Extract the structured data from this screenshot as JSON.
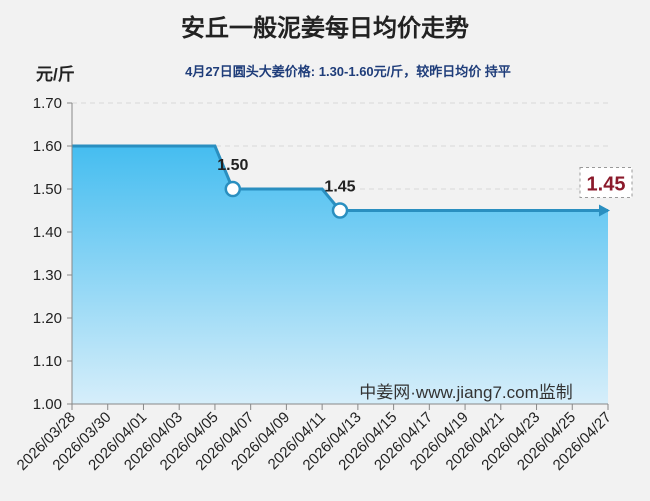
{
  "chart_data": {
    "type": "area",
    "title": "安丘一般泥姜每日均价走势",
    "subtitle": "4月27日圆头大姜价格: 1.30-1.60元/斤，较昨日均价 持平",
    "ylabel": "元/斤",
    "annotation": "中姜网·www.jiang7.com监制",
    "x": [
      "2026/03/28",
      "2026/04/05",
      "2026/04/06",
      "2026/04/11",
      "2026/04/12",
      "2026/04/27"
    ],
    "values": [
      1.6,
      1.6,
      1.5,
      1.5,
      1.45,
      1.45
    ],
    "value_labels": [
      null,
      null,
      "1.50",
      null,
      "1.45",
      "1.45"
    ],
    "color": "#2a8fc0",
    "xlim": [
      "2026/03/28",
      "2026/04/27"
    ],
    "xticks": [
      "2026/03/28",
      "2026/03/30",
      "2026/04/01",
      "2026/04/03",
      "2026/04/05",
      "2026/04/07",
      "2026/04/09",
      "2026/04/11",
      "2026/04/13",
      "2026/04/15",
      "2026/04/17",
      "2026/04/19",
      "2026/04/21",
      "2026/04/23",
      "2026/04/25",
      "2026/04/27"
    ],
    "ylim": [
      1.0,
      1.7
    ],
    "yticks": [
      {
        "value": 1.0,
        "label": "1.00"
      },
      {
        "value": 1.1,
        "label": "1.10"
      },
      {
        "value": 1.2,
        "label": "1.20"
      },
      {
        "value": 1.3,
        "label": "1.30"
      },
      {
        "value": 1.4,
        "label": "1.40"
      },
      {
        "value": 1.5,
        "label": "1.50"
      },
      {
        "value": 1.6,
        "label": "1.60"
      },
      {
        "value": 1.7,
        "label": "1.70"
      }
    ],
    "grid": true
  }
}
